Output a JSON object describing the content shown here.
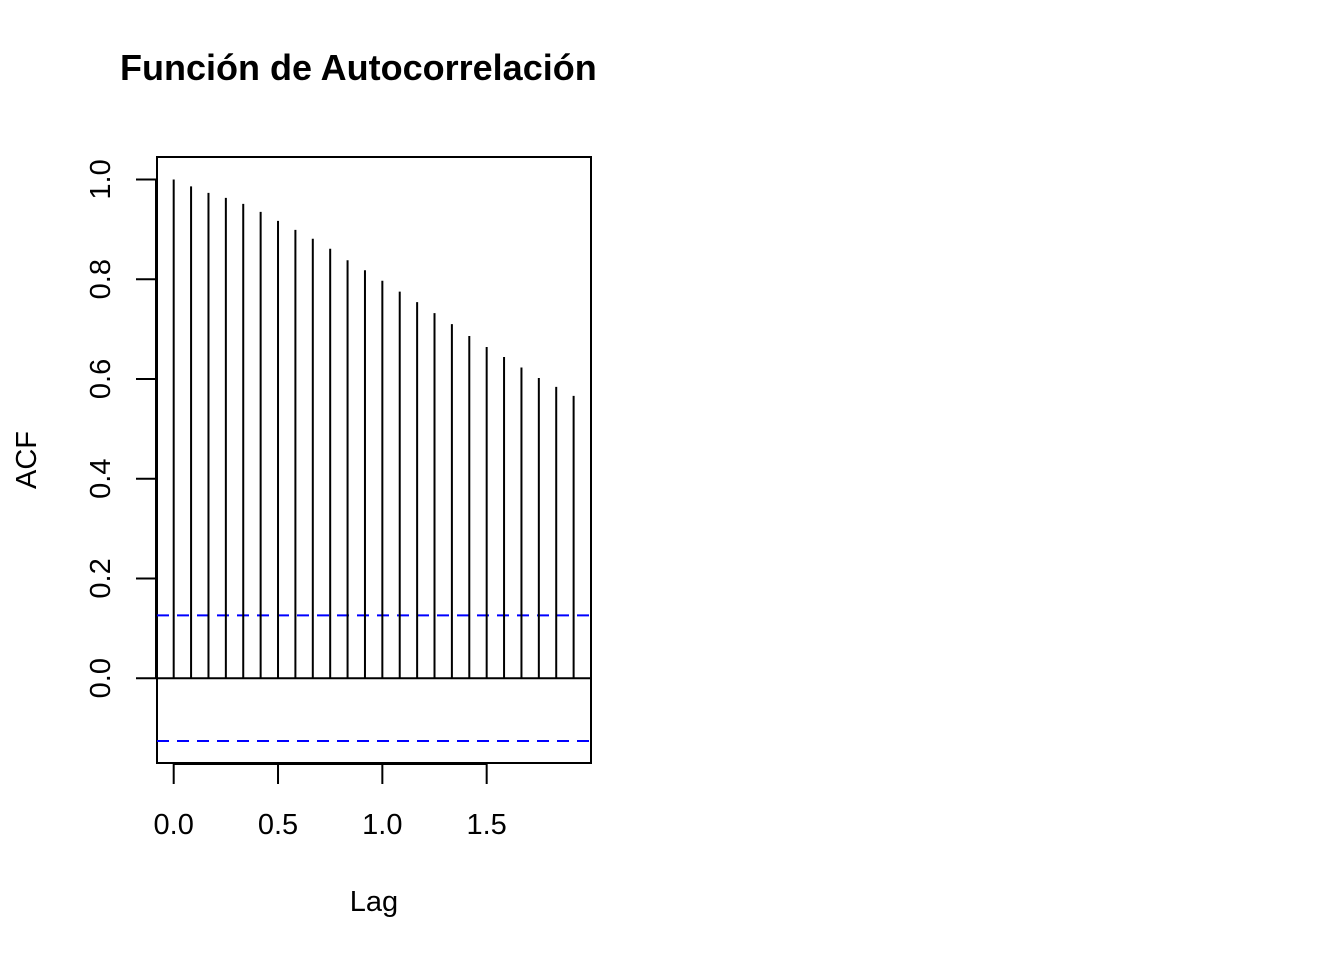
{
  "chart_data": {
    "type": "bar",
    "title": "Función de Autocorrelación",
    "xlabel": "Lag",
    "ylabel": "ACF",
    "xlim": [
      -0.08,
      2.0
    ],
    "ylim": [
      -0.17,
      1.045
    ],
    "x_ticks": [
      0.0,
      0.5,
      1.0,
      1.5
    ],
    "x_tick_labels": [
      "0.0",
      "0.5",
      "1.0",
      "1.5"
    ],
    "y_ticks": [
      0.0,
      0.2,
      0.4,
      0.6,
      0.8,
      1.0
    ],
    "y_tick_labels": [
      "0.0",
      "0.2",
      "0.4",
      "0.6",
      "0.8",
      "1.0"
    ],
    "lags": [
      0.0,
      0.0833,
      0.1667,
      0.25,
      0.3333,
      0.4167,
      0.5,
      0.5833,
      0.6667,
      0.75,
      0.8333,
      0.9167,
      1.0,
      1.0833,
      1.1667,
      1.25,
      1.3333,
      1.4167,
      1.5,
      1.5833,
      1.6667,
      1.75,
      1.8333,
      1.9167
    ],
    "acf": [
      1.0,
      0.986,
      0.973,
      0.963,
      0.951,
      0.935,
      0.917,
      0.899,
      0.881,
      0.861,
      0.838,
      0.818,
      0.797,
      0.775,
      0.754,
      0.732,
      0.71,
      0.686,
      0.664,
      0.644,
      0.623,
      0.602,
      0.584,
      0.566
    ],
    "confidence_bound": 0.126,
    "confidence_color": "#0000ff",
    "grid": false,
    "legend": "none"
  }
}
